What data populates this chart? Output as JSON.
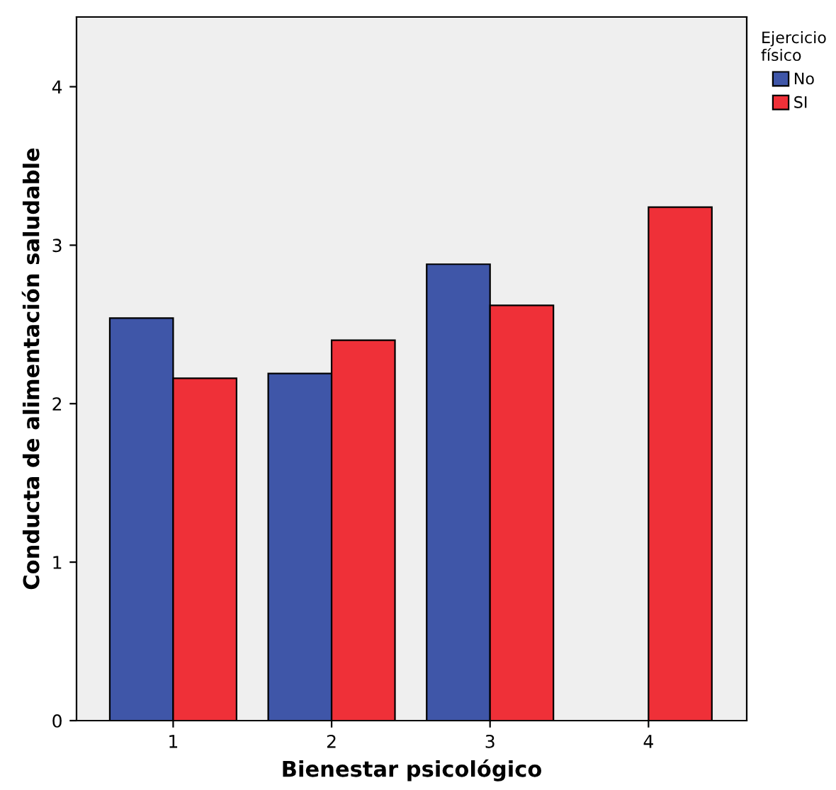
{
  "chart_data": {
    "type": "bar",
    "xlabel": "Bienestar psicológico",
    "ylabel": "Conducta de alimentación saludable",
    "legend_title": "Ejercicio\nfísico",
    "categories": [
      "1",
      "2",
      "3",
      "4"
    ],
    "series": [
      {
        "name": "No",
        "color": "#3f56a8",
        "values": [
          2.54,
          2.19,
          2.88,
          null
        ]
      },
      {
        "name": "SI",
        "color": "#ef3038",
        "values": [
          2.16,
          2.4,
          2.62,
          3.24
        ]
      }
    ],
    "ylim": [
      0,
      4.44
    ],
    "yticks": [
      0,
      1,
      2,
      3,
      4
    ],
    "grid": false,
    "legend": "top right"
  }
}
